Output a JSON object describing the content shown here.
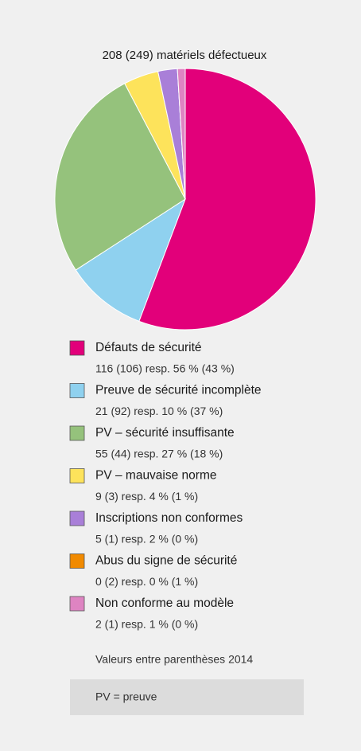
{
  "chart_data": {
    "type": "pie",
    "title": "208 (249) matériels défectueux",
    "categories": [
      "Défauts de sécurité",
      "Preuve de sécurité incomplète",
      "PV – sécurité insuffisante",
      "PV – mauvaise norme",
      "Inscriptions non conformes",
      "Abus du signe de sécurité",
      "Non conforme au modèle"
    ],
    "values": [
      116,
      21,
      55,
      9,
      5,
      0,
      2
    ],
    "value_labels": [
      "116 (106) resp. 56 % (43 %)",
      "21 (92) resp. 10 % (37 %)",
      "55 (44) resp. 27 % (18 %)",
      "9 (3) resp. 4 % (1 %)",
      "5 (1) resp. 2 % (0 %)",
      "0 (2) resp. 0 % (1 %)",
      "2 (1) resp. 1 % (0 %)"
    ],
    "colors": [
      "#e2007a",
      "#8fd1ef",
      "#95c27c",
      "#fde35b",
      "#a97fd8",
      "#f18a00",
      "#de84c2"
    ],
    "notes": [
      "Valeurs entre parenthèses 2014",
      "PV = preuve"
    ]
  }
}
